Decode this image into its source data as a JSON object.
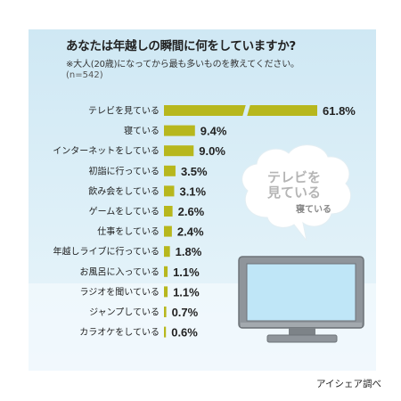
{
  "header": {
    "title": "あなたは年越しの瞬間に何をしていますか?",
    "note": "※大人(20歳)になってから最も多いものを教えてください。",
    "sample": "(n=542)"
  },
  "source": "アイシェア調べ",
  "bubble": {
    "main_text_line1": "テレビを",
    "main_text_line2": "見ている",
    "sub_text": "寝ている"
  },
  "colors": {
    "panel_top": "#cfe8f4",
    "panel_bottom": "#eaf6fb",
    "bar": "#b7b71d",
    "tv_frame": "#8f959b",
    "tv_screen": "#bfe6f7"
  },
  "chart_data": {
    "type": "bar",
    "orientation": "horizontal",
    "title": "あなたは年越しの瞬間に何をしていますか?",
    "categories": [
      "テレビを見ている",
      "寝ている",
      "インターネットをしている",
      "初詣に行っている",
      "飲み会をしている",
      "ゲームをしている",
      "仕事をしている",
      "年越しライブに行っている",
      "お風呂に入っている",
      "ラジオを聞いている",
      "ジャンプしている",
      "カラオケをしている"
    ],
    "values": [
      61.8,
      9.4,
      9.0,
      3.5,
      3.1,
      2.6,
      2.4,
      1.8,
      1.1,
      1.1,
      0.7,
      0.6
    ],
    "value_labels": [
      "61.8%",
      "9.4%",
      "9.0%",
      "3.5%",
      "3.1%",
      "2.6%",
      "2.4%",
      "1.8%",
      "1.1%",
      "1.1%",
      "0.7%",
      "0.6%"
    ],
    "axis_break": true,
    "unit": "%"
  }
}
